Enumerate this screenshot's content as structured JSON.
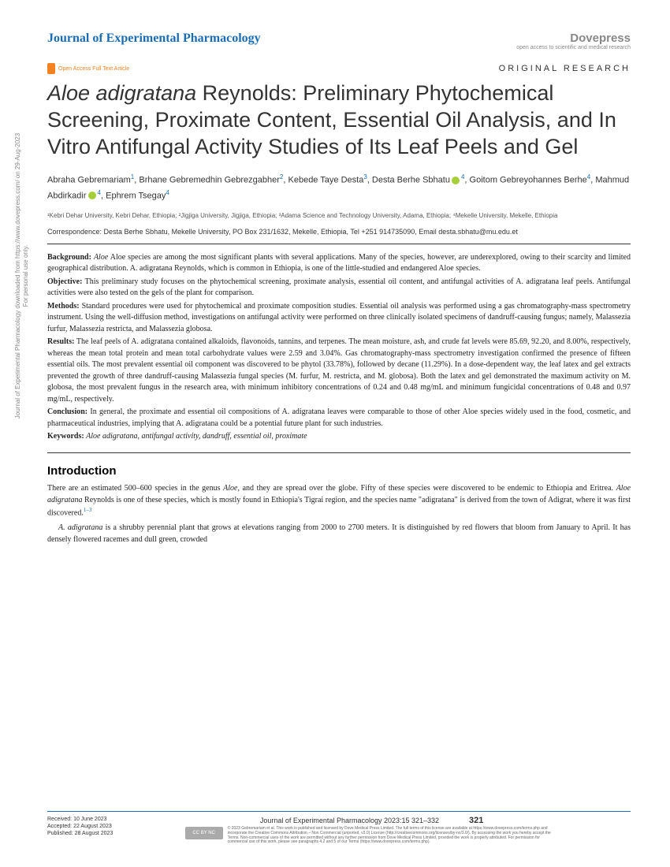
{
  "sidebar": {
    "line1": "Journal of Experimental Pharmacology downloaded from https://www.dovepress.com/ on 29-Aug-2023",
    "line2": "For personal use only."
  },
  "header": {
    "journal": "Journal of Experimental Pharmacology",
    "publisher": "Dovepress",
    "publisherTag": "open access to scientific and medical research",
    "oaText": "Open Access Full Text Article",
    "articleType": "ORIGINAL RESEARCH"
  },
  "title": {
    "italic": "Aloe adigratana",
    "rest": " Reynolds: Preliminary Phytochemical Screening, Proximate Content, Essential Oil Analysis, and In Vitro Antifungal Activity Studies of Its Leaf Peels and Gel"
  },
  "authors": [
    {
      "name": "Abraha Gebremariam",
      "aff": "1"
    },
    {
      "name": "Brhane Gebremedhin Gebrezgabher",
      "aff": "2"
    },
    {
      "name": "Kebede Taye Desta",
      "aff": "3"
    },
    {
      "name": "Desta Berhe Sbhatu",
      "aff": "4",
      "orcid": true
    },
    {
      "name": "Goitom Gebreyohannes Berhe",
      "aff": "4"
    },
    {
      "name": "Mahmud Abdirkadir",
      "aff": "4",
      "orcid": true
    },
    {
      "name": "Ephrem Tsegay",
      "aff": "4"
    }
  ],
  "affiliations": "¹Kebri Dehar University, Kebri Dehar, Ethiopia; ²Jigjiga University, Jigjiga, Ethiopia; ³Adama Science and Technology University, Adama, Ethiopia; ⁴Mekelle University, Mekelle, Ethiopia",
  "correspondence": "Correspondence: Desta Berhe Sbhatu, Mekelle University, PO Box 231/1632, Mekelle, Ethiopia, Tel +251 914735090, Email desta.sbhatu@mu.edu.et",
  "abstract": {
    "background": "Aloe species are among the most significant plants with several applications. Many of the species, however, are underexplored, owing to their scarcity and limited geographical distribution. A. adigratana Reynolds, which is common in Ethiopia, is one of the little-studied and endangered Aloe species.",
    "objective": "This preliminary study focuses on the phytochemical screening, proximate analysis, essential oil content, and antifungal activities of A. adigratana leaf peels. Antifungal activities were also tested on the gels of the plant for comparison.",
    "methods": "Standard procedures were used for phytochemical and proximate composition studies. Essential oil analysis was performed using a gas chromatography-mass spectrometry instrument. Using the well-diffusion method, investigations on antifungal activity were performed on three clinically isolated specimens of dandruff-causing fungus; namely, Malassezia furfur, Malassezia restricta, and Malassezia globosa.",
    "results": "The leaf peels of A. adigratana contained alkaloids, flavonoids, tannins, and terpenes. The mean moisture, ash, and crude fat levels were 85.69, 92.20, and 8.00%, respectively, whereas the mean total protein and mean total carbohydrate values were 2.59 and 3.04%. Gas chromatography-mass spectrometry investigation confirmed the presence of fifteen essential oils. The most prevalent essential oil component was discovered to be phytol (33.78%), followed by decane (11.29%). In a dose-dependent way, the leaf latex and gel extracts prevented the growth of three dandruff-causing Malassezia fungal species (M. furfur, M. restricta, and M. globosa). Both the latex and gel demonstrated the maximum activity on M. globosa, the most prevalent fungus in the research area, with minimum inhibitory concentrations of 0.24 and 0.48 mg/mL and minimum fungicidal concentrations of 0.48 and 0.97 mg/mL, respectively.",
    "conclusion": "In general, the proximate and essential oil compositions of A. adigratana leaves were comparable to those of other Aloe species widely used in the food, cosmetic, and pharmaceutical industries, implying that A. adigratana could be a potential future plant for such industries.",
    "keywords": "Aloe adigratana, antifungal activity, dandruff, essential oil, proximate"
  },
  "intro": {
    "heading": "Introduction",
    "p1a": "There are an estimated 500–600 species in the genus ",
    "p1b": ", and they are spread over the globe. Fifty of these species were discovered to be endemic to Ethiopia and Eritrea. ",
    "p1c": " Reynolds is one of these species, which is mostly found in Ethiopia's Tigrai region, and the species name \"adigratana\" is derived from the town of Adigrat, where it was first discovered.",
    "ref1": "1–3",
    "p2a": "A. adigratana",
    "p2b": " is a shrubby perennial plant that grows at elevations ranging from 2000 to 2700 meters. It is distinguished by red flowers that bloom from January to April. It has densely flowered racemes and dull green, crowded"
  },
  "footer": {
    "received": "Received: 10 June 2023",
    "accepted": "Accepted: 22 August 2023",
    "published": "Published: 28 August 2023",
    "citation": "Journal of Experimental Pharmacology 2023:15 321–332",
    "page": "321",
    "cc": "CC BY NC",
    "license": "© 2023 Gebremariam et al. This work is published and licensed by Dove Medical Press Limited. The full terms of this license are available at https://www.dovepress.com/terms.php and incorporate the Creative Commons Attribution – Non Commercial (unported, v3.0) License (http://creativecommons.org/licenses/by-nc/3.0/). By accessing the work you hereby accept the Terms. Non-commercial uses of the work are permitted without any further permission from Dove Medical Press Limited, provided the work is properly attributed. For permission for commercial use of this work, please see paragraphs 4.2 and 5 of our Terms (https://www.dovepress.com/terms.php)."
  }
}
